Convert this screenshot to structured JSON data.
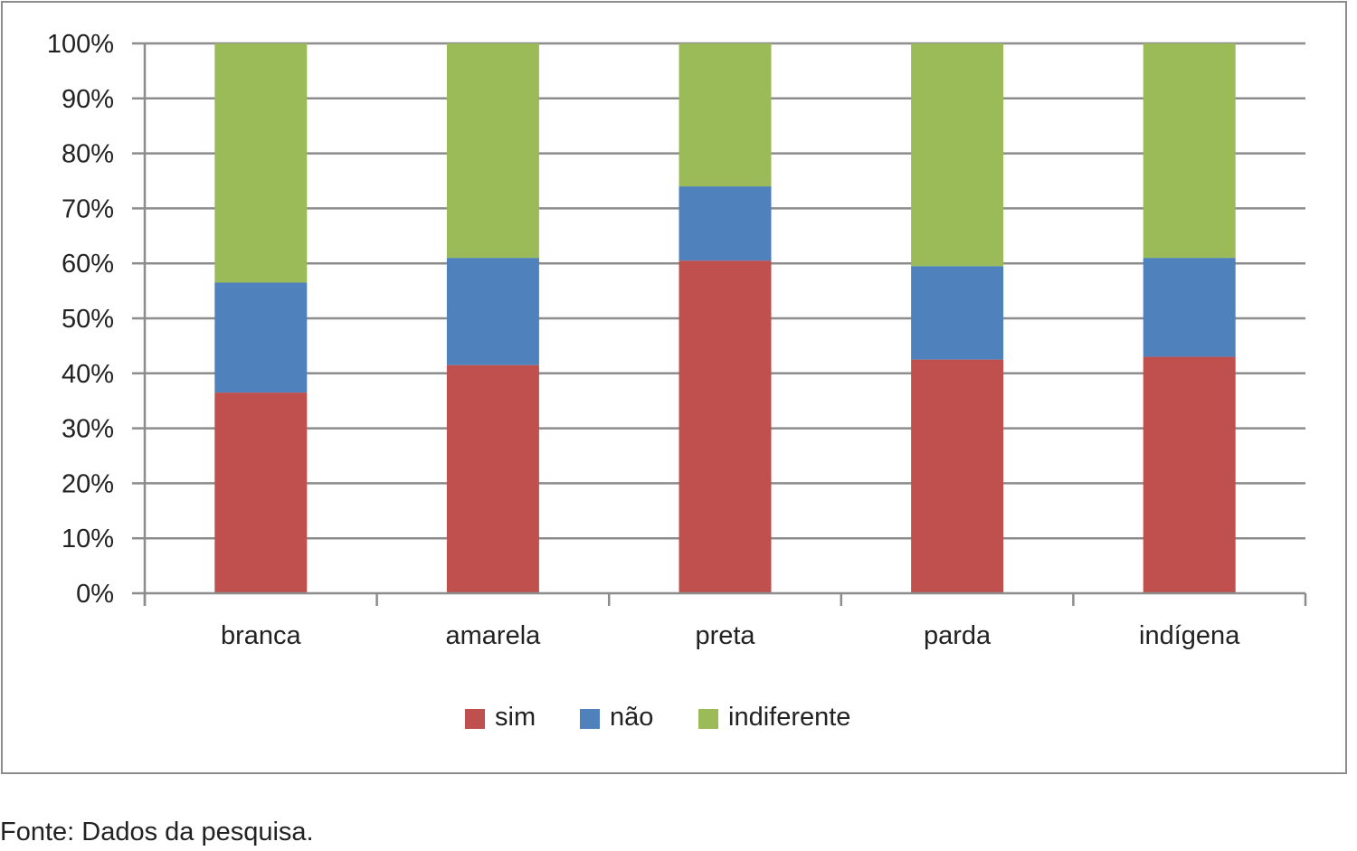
{
  "chart_data": {
    "type": "bar",
    "stacked": true,
    "categories": [
      "branca",
      "amarela",
      "preta",
      "parda",
      "indígena"
    ],
    "series": [
      {
        "name": "sim",
        "color": "#c0504d",
        "values": [
          36.5,
          41.5,
          60.5,
          42.5,
          43
        ]
      },
      {
        "name": "não",
        "color": "#4f81bd",
        "values": [
          20,
          19.5,
          13.5,
          17,
          18
        ]
      },
      {
        "name": "indiferente",
        "color": "#9bbb59",
        "values": [
          43.5,
          39,
          26,
          40.5,
          39
        ]
      }
    ],
    "ylim": [
      0,
      100
    ],
    "yticks": [
      "0%",
      "10%",
      "20%",
      "30%",
      "40%",
      "50%",
      "60%",
      "70%",
      "80%",
      "90%",
      "100%"
    ],
    "grid": true,
    "legend_position": "bottom",
    "title": "",
    "xlabel": "",
    "ylabel": ""
  },
  "source_note": "Fonte: Dados da pesquisa."
}
